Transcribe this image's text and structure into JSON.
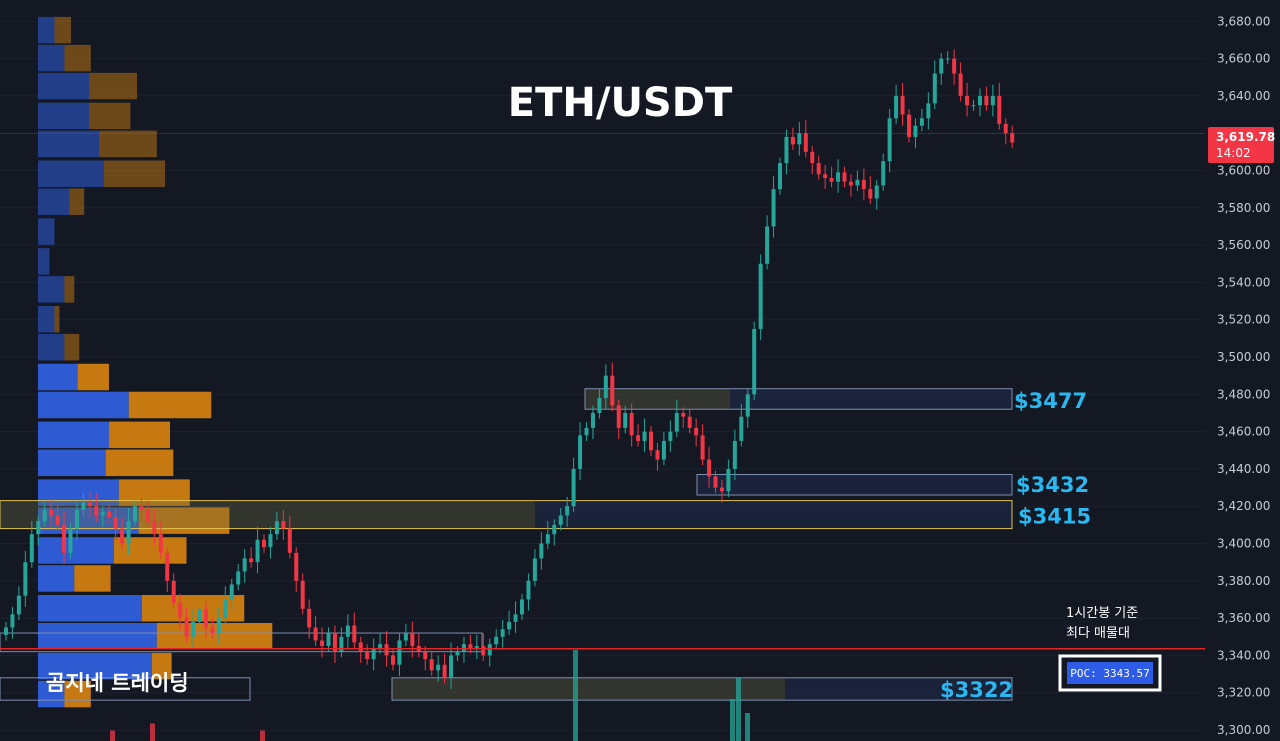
{
  "chart_data": {
    "type": "candlestick",
    "title": "ETH/USDT",
    "symbol": "ETH/USDT",
    "price_axis": {
      "range": [
        3294,
        3685
      ],
      "ticks": [
        3300,
        3320,
        3340,
        3360,
        3380,
        3400,
        3420,
        3440,
        3460,
        3480,
        3500,
        3520,
        3540,
        3560,
        3580,
        3600,
        3620,
        3640,
        3660,
        3680
      ],
      "tick_labels": [
        "3,300.00",
        "3,320.00",
        "3,340.00",
        "3,360.00",
        "3,380.00",
        "3,400.00",
        "3,420.00",
        "3,440.00",
        "3,460.00",
        "3,480.00",
        "3,500.00",
        "3,520.00",
        "3,540.00",
        "3,560.00",
        "3,580.00",
        "3,600.00",
        "3,620.00",
        "3,640.00",
        "3,660.00",
        "3,680.00"
      ]
    },
    "current_price": {
      "value": 3619.78,
      "label": "3,619.78",
      "countdown": "14:02",
      "color": "#f23645"
    },
    "candles_close": [
      3355,
      3362,
      3372,
      3390,
      3405,
      3412,
      3418,
      3415,
      3410,
      3395,
      3408,
      3418,
      3422,
      3420,
      3415,
      3417,
      3414,
      3408,
      3400,
      3412,
      3420,
      3418,
      3412,
      3405,
      3395,
      3380,
      3368,
      3360,
      3350,
      3358,
      3365,
      3355,
      3352,
      3360,
      3370,
      3378,
      3385,
      3392,
      3390,
      3402,
      3398,
      3405,
      3412,
      3408,
      3395,
      3380,
      3365,
      3355,
      3348,
      3345,
      3352,
      3342,
      3350,
      3356,
      3347,
      3342,
      3338,
      3344,
      3346,
      3340,
      3335,
      3348,
      3352,
      3345,
      3342,
      3338,
      3332,
      3335,
      3328,
      3340,
      3342,
      3346,
      3344,
      3345,
      3340,
      3346,
      3350,
      3354,
      3358,
      3362,
      3370,
      3380,
      3392,
      3400,
      3405,
      3410,
      3415,
      3420,
      3440,
      3458,
      3462,
      3470,
      3478,
      3490,
      3474,
      3462,
      3470,
      3458,
      3455,
      3460,
      3450,
      3445,
      3455,
      3460,
      3470,
      3468,
      3462,
      3458,
      3445,
      3436,
      3430,
      3428,
      3440,
      3455,
      3468,
      3480,
      3515,
      3550,
      3570,
      3590,
      3604,
      3618,
      3614,
      3620,
      3610,
      3604,
      3598,
      3596,
      3594,
      3599,
      3594,
      3592,
      3595,
      3590,
      3585,
      3592,
      3605,
      3628,
      3640,
      3630,
      3618,
      3624,
      3628,
      3636,
      3652,
      3660,
      3660,
      3652,
      3640,
      3635,
      3635,
      3640,
      3635,
      3640,
      3625,
      3620,
      3615
    ],
    "volume_profile": [
      {
        "price": 3675,
        "buy": 1.0,
        "sell": 1.0
      },
      {
        "price": 3660,
        "buy": 1.6,
        "sell": 1.6
      },
      {
        "price": 3645,
        "buy": 3.1,
        "sell": 2.9
      },
      {
        "price": 3629,
        "buy": 3.1,
        "sell": 2.5
      },
      {
        "price": 3614,
        "buy": 3.7,
        "sell": 3.5
      },
      {
        "price": 3598,
        "buy": 4.0,
        "sell": 3.7
      },
      {
        "price": 3583,
        "buy": 1.9,
        "sell": 0.9
      },
      {
        "price": 3567,
        "buy": 1.0,
        "sell": 0.0
      },
      {
        "price": 3551,
        "buy": 0.7,
        "sell": 0.0
      },
      {
        "price": 3536,
        "buy": 1.6,
        "sell": 0.6
      },
      {
        "price": 3520,
        "buy": 1.0,
        "sell": 0.3
      },
      {
        "price": 3505,
        "buy": 1.6,
        "sell": 0.9
      },
      {
        "price": 3489,
        "buy": 2.4,
        "sell": 1.9
      },
      {
        "price": 3474,
        "buy": 5.5,
        "sell": 5.0
      },
      {
        "price": 3458,
        "buy": 4.3,
        "sell": 3.7
      },
      {
        "price": 3443,
        "buy": 4.1,
        "sell": 4.1
      },
      {
        "price": 3427,
        "buy": 4.9,
        "sell": 4.3
      },
      {
        "price": 3412,
        "buy": 6.1,
        "sell": 5.5
      },
      {
        "price": 3396,
        "buy": 4.6,
        "sell": 4.4
      },
      {
        "price": 3381,
        "buy": 2.2,
        "sell": 2.2
      },
      {
        "price": 3365,
        "buy": 6.3,
        "sell": 6.2
      },
      {
        "price": 3350,
        "buy": 7.2,
        "sell": 7.0
      },
      {
        "price": 3334,
        "buy": 6.9,
        "sell": 1.2
      },
      {
        "price": 3319,
        "buy": 1.6,
        "sell": 1.6
      }
    ],
    "levels": [
      {
        "price": 3477,
        "label": "$3477",
        "zone": [
          3472,
          3483
        ]
      },
      {
        "price": 3432,
        "label": "$3432",
        "zone": [
          3426,
          3437
        ]
      },
      {
        "price": 3415,
        "label": "$3415",
        "zone": [
          3408,
          3423
        ]
      },
      {
        "price": 3322,
        "label": "$3322",
        "zone": [
          3316,
          3328
        ]
      }
    ],
    "poc": {
      "value": 3343.57,
      "label": "POC: 3343.57",
      "note_line1": "1시간봉 기준",
      "note_line2": "최다 매물대"
    },
    "colors": {
      "up": "#26a69a",
      "down": "#f23645",
      "vp_buy": "#2f5fdc",
      "vp_sell": "#d9840f",
      "level": "#2bb7f0",
      "poc_line": "#e02626"
    }
  },
  "branding": {
    "text": "곰지네 트레이딩"
  }
}
